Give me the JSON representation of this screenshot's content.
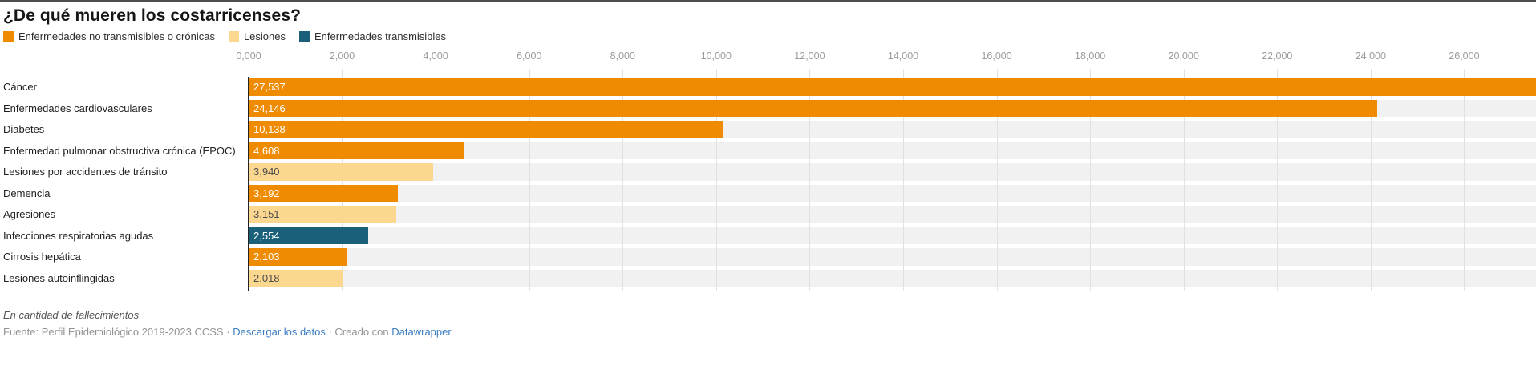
{
  "page": {
    "title": "¿De qué mueren los costarricenses?"
  },
  "colors": {
    "accent_orange": "#EF8B00",
    "accent_cream": "#FBD78F",
    "accent_teal": "#1A607A",
    "track_gray": "#f1f1f1",
    "link_blue": "#3a7dc2"
  },
  "legend": {
    "items": [
      {
        "label": "Enfermedades no transmisibles o crónicas",
        "color": "#EF8B00",
        "text_color": "#ffffff"
      },
      {
        "label": "Lesiones",
        "color": "#FBD78F",
        "text_color": "#4d4d4d"
      },
      {
        "label": "Enfermedades transmisibles",
        "color": "#1A607A",
        "text_color": "#ffffff"
      }
    ]
  },
  "chart_data": {
    "type": "bar",
    "orientation": "horizontal",
    "title": "¿De qué mueren los costarricenses?",
    "xlabel": "",
    "ylabel": "",
    "xmin": 0,
    "xmax": 27537,
    "grid": true,
    "legend_position": "top",
    "ticks": [
      {
        "label": "0,000",
        "value": 0
      },
      {
        "label": "2,000",
        "value": 2000
      },
      {
        "label": "4,000",
        "value": 4000
      },
      {
        "label": "6,000",
        "value": 6000
      },
      {
        "label": "8,000",
        "value": 8000
      },
      {
        "label": "10,000",
        "value": 10000
      },
      {
        "label": "12,000",
        "value": 12000
      },
      {
        "label": "14,000",
        "value": 14000
      },
      {
        "label": "16,000",
        "value": 16000
      },
      {
        "label": "18,000",
        "value": 18000
      },
      {
        "label": "20,000",
        "value": 20000
      },
      {
        "label": "22,000",
        "value": 22000
      },
      {
        "label": "24,000",
        "value": 24000
      },
      {
        "label": "26,000",
        "value": 26000
      }
    ],
    "bars": [
      {
        "label": "Cáncer",
        "value": 27537,
        "display": "27,537",
        "group": "Enfermedades no transmisibles o crónicas"
      },
      {
        "label": "Enfermedades cardiovasculares",
        "value": 24146,
        "display": "24,146",
        "group": "Enfermedades no transmisibles o crónicas"
      },
      {
        "label": "Diabetes",
        "value": 10138,
        "display": "10,138",
        "group": "Enfermedades no transmisibles o crónicas"
      },
      {
        "label": "Enfermedad pulmonar obstructiva crónica (EPOC)",
        "value": 4608,
        "display": "4,608",
        "group": "Enfermedades no transmisibles o crónicas"
      },
      {
        "label": "Lesiones por accidentes de tránsito",
        "value": 3940,
        "display": "3,940",
        "group": "Lesiones"
      },
      {
        "label": "Demencia",
        "value": 3192,
        "display": "3,192",
        "group": "Enfermedades no transmisibles o crónicas"
      },
      {
        "label": "Agresiones",
        "value": 3151,
        "display": "3,151",
        "group": "Lesiones"
      },
      {
        "label": "Infecciones respiratorias agudas",
        "value": 2554,
        "display": "2,554",
        "group": "Enfermedades transmisibles"
      },
      {
        "label": "Cirrosis hepática",
        "value": 2103,
        "display": "2,103",
        "group": "Enfermedades no transmisibles o crónicas"
      },
      {
        "label": "Lesiones autoinflingidas",
        "value": 2018,
        "display": "2,018",
        "group": "Lesiones"
      }
    ]
  },
  "footer": {
    "note": "En cantidad de fallecimientos",
    "source_prefix": "Fuente: Perfil Epidemiológico 2019-2023 CCSS",
    "separator": "·",
    "download_link": "Descargar los datos",
    "created_with": "Creado con",
    "datawrapper_link": "Datawrapper"
  }
}
